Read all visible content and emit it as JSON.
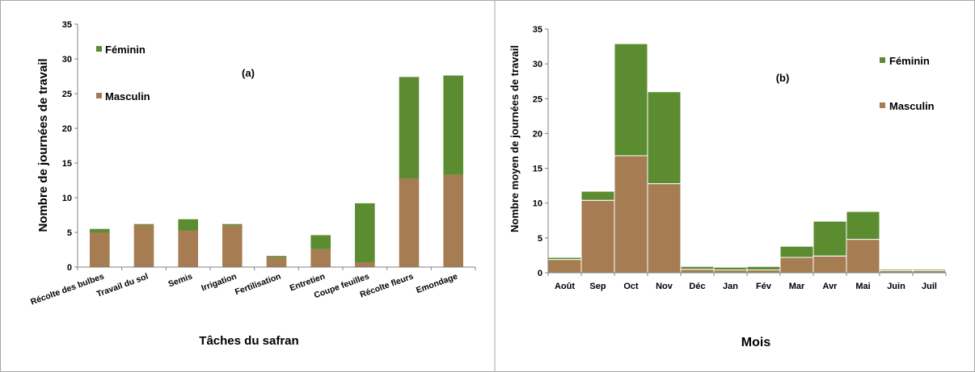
{
  "chart_data": [
    {
      "type": "bar",
      "stacked": true,
      "panel_label": "(a)",
      "xlabel": "Tâches du safran",
      "ylabel": "Nombre de journées de travail",
      "ylim": [
        0,
        35
      ],
      "yticks": [
        0,
        5,
        10,
        15,
        20,
        25,
        30,
        35
      ],
      "categories": [
        "Récolte des bulbes",
        "Travail du sol",
        "Semis",
        "Irrigation",
        "Fertilisation",
        "Entretien",
        "Coupe feuilles",
        "Récolte fleurs",
        "Emondage"
      ],
      "series": [
        {
          "name": "Masculin",
          "color": "#a67c52",
          "values": [
            5.0,
            6.1,
            5.3,
            6.0,
            1.4,
            2.6,
            0.7,
            12.8,
            13.3
          ]
        },
        {
          "name": "Féminin",
          "color": "#5b8c2f",
          "values": [
            0.5,
            0.1,
            1.6,
            0.2,
            0.2,
            2.0,
            8.5,
            14.6,
            14.3
          ]
        }
      ],
      "legend_position": "top-left",
      "grid": false
    },
    {
      "type": "bar",
      "stacked": true,
      "panel_label": "(b)",
      "xlabel": "Mois",
      "ylabel": "Nombre moyen de journées de travail",
      "ylim": [
        0,
        35
      ],
      "yticks": [
        0,
        5,
        10,
        15,
        20,
        25,
        30,
        35
      ],
      "categories": [
        "Août",
        "Sep",
        "Oct",
        "Nov",
        "Déc",
        "Jan",
        "Fév",
        "Mar",
        "Avr",
        "Mai",
        "Juin",
        "Juil"
      ],
      "series": [
        {
          "name": "Masculin",
          "color": "#a67c52",
          "values": [
            1.9,
            10.4,
            16.8,
            12.8,
            0.5,
            0.4,
            0.4,
            2.2,
            2.4,
            4.8,
            0.3,
            0.3
          ]
        },
        {
          "name": "Féminin",
          "color": "#5b8c2f",
          "values": [
            0.3,
            1.3,
            16.1,
            13.2,
            0.4,
            0.4,
            0.5,
            1.6,
            5.0,
            4.0,
            0.2,
            0.2
          ]
        }
      ],
      "legend_position": "top-right",
      "grid": false
    }
  ]
}
